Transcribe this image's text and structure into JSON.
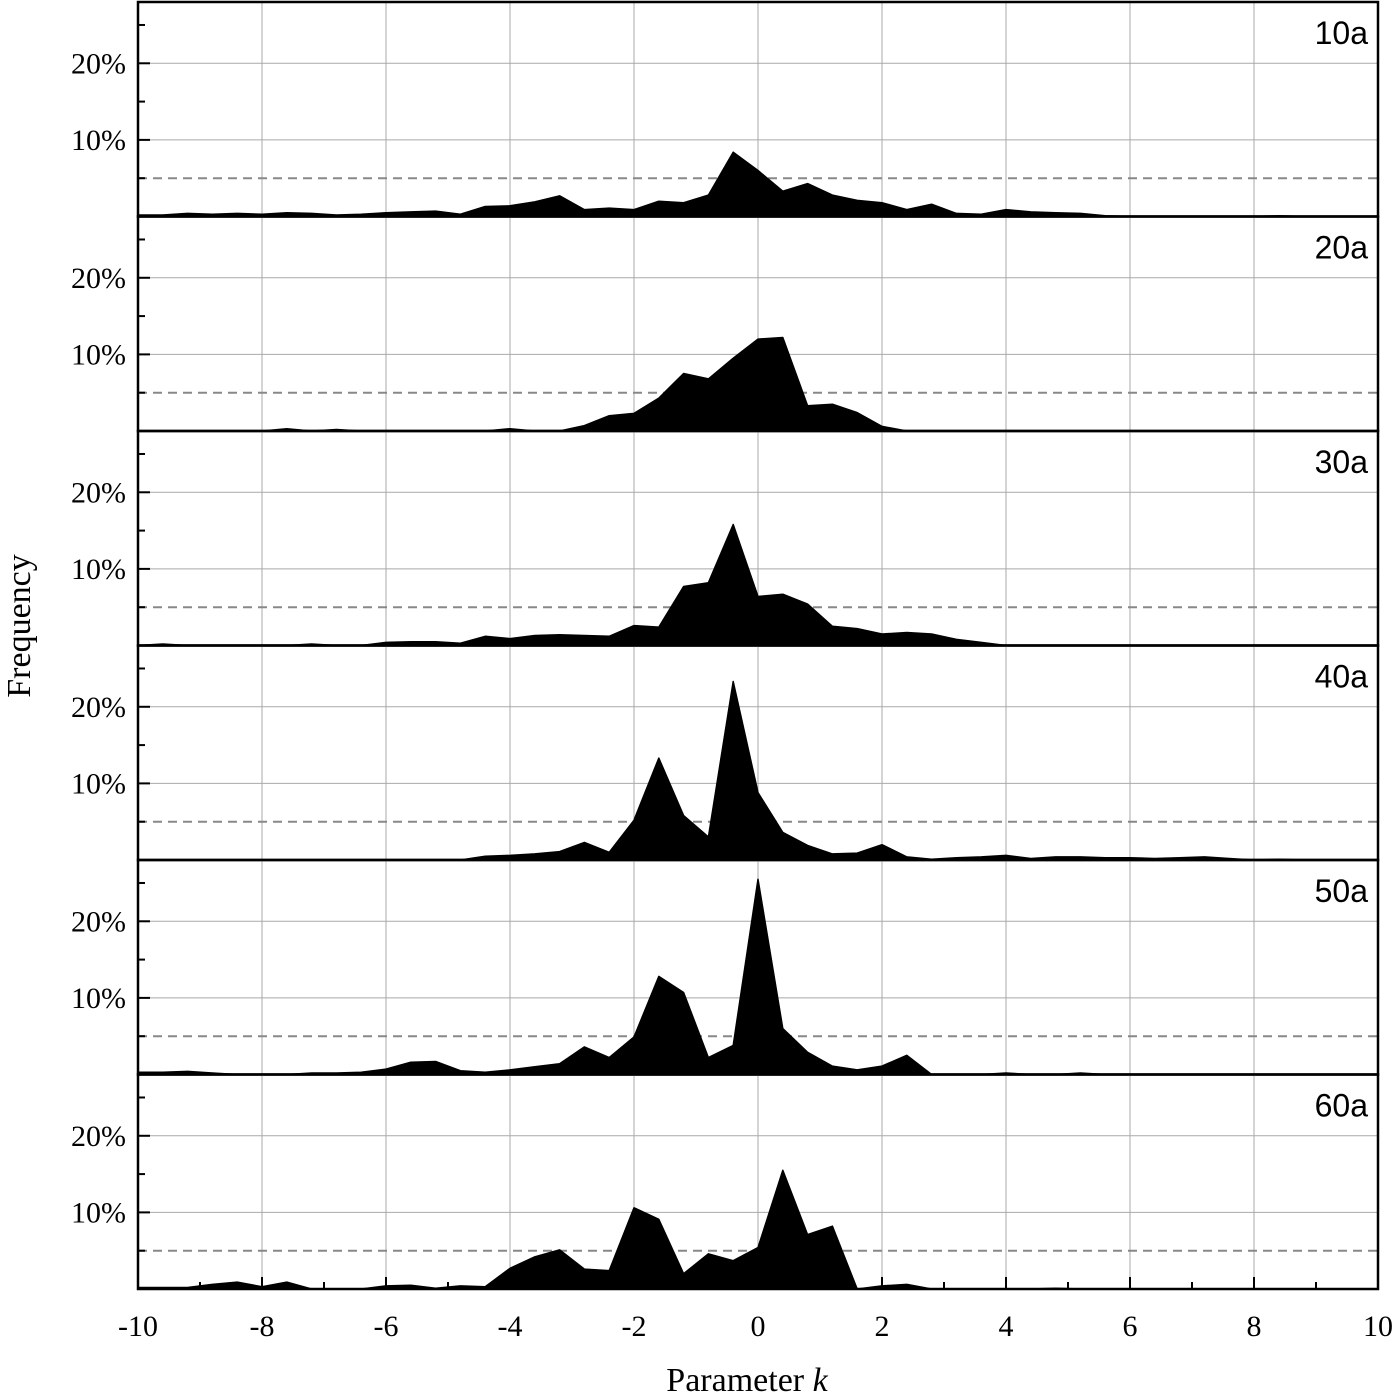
{
  "chart_data": {
    "type": "area",
    "xlabel": "Parameter",
    "xlabel_var": "k",
    "ylabel": "Frequency",
    "xlim": [
      -10,
      10
    ],
    "ylim": [
      0,
      28
    ],
    "x_ticks": [
      -10,
      -8,
      -6,
      -4,
      -2,
      0,
      2,
      4,
      6,
      8,
      10
    ],
    "y_ticks": [
      10,
      20
    ],
    "y_tick_labels": [
      "10%",
      "20%"
    ],
    "grid": true,
    "fill_color": "#000000",
    "reference_line": {
      "value": 5,
      "style": "dashed",
      "color": "#888888"
    },
    "x": [
      -10,
      -9.6,
      -9.2,
      -8.8,
      -8.4,
      -8,
      -7.6,
      -7.2,
      -6.8,
      -6.4,
      -6,
      -5.6,
      -5.2,
      -4.8,
      -4.4,
      -4,
      -3.6,
      -3.2,
      -2.8,
      -2.4,
      -2,
      -1.6,
      -1.2,
      -0.8,
      -0.4,
      0,
      0.4,
      0.8,
      1.2,
      1.6,
      2,
      2.4,
      2.8,
      3.2,
      3.6,
      4,
      4.4,
      4.8,
      5.2,
      5.6,
      6,
      6.4,
      6.8,
      7.2,
      7.6,
      8,
      8.4,
      8.8,
      9.2,
      9.6,
      10
    ],
    "panels": [
      {
        "label": "10a",
        "values": [
          0.2,
          0.2,
          0.4,
          0.3,
          0.4,
          0.3,
          0.5,
          0.4,
          0.2,
          0.3,
          0.5,
          0.6,
          0.7,
          0.3,
          1.3,
          1.4,
          1.9,
          2.7,
          0.9,
          1.1,
          0.9,
          2,
          1.8,
          2.8,
          8.4,
          6,
          3.3,
          4.3,
          2.8,
          2.1,
          1.8,
          0.9,
          1.6,
          0.4,
          0.3,
          0.9,
          0.6,
          0.5,
          0.4,
          0.1,
          0,
          0,
          0,
          0,
          0,
          0,
          0.1,
          0,
          0,
          0,
          0
        ]
      },
      {
        "label": "20a",
        "values": [
          0,
          0,
          0,
          0,
          0,
          0,
          0.3,
          0,
          0.2,
          0,
          0,
          0,
          0,
          0,
          0,
          0.3,
          0,
          0,
          0.7,
          2,
          2.3,
          4.3,
          7.5,
          6.8,
          9.5,
          12,
          12.2,
          3.3,
          3.5,
          2.4,
          0.6,
          0,
          0,
          0,
          0,
          0,
          0,
          0,
          0,
          0,
          0,
          0,
          0,
          0,
          0,
          0,
          0,
          0,
          0,
          0,
          0
        ]
      },
      {
        "label": "30a",
        "values": [
          0,
          0.2,
          0,
          0,
          0,
          0,
          0,
          0.2,
          0,
          0,
          0.4,
          0.5,
          0.5,
          0.3,
          1.2,
          0.9,
          1.3,
          1.4,
          1.3,
          1.2,
          2.6,
          2.4,
          7.7,
          8.2,
          15.8,
          6.4,
          6.7,
          5.4,
          2.5,
          2.2,
          1.5,
          1.7,
          1.5,
          0.8,
          0.4,
          0,
          0,
          0,
          0,
          0,
          0,
          0,
          0,
          0,
          0,
          0,
          0,
          0,
          0,
          0,
          0
        ]
      },
      {
        "label": "40a",
        "values": [
          0,
          0,
          0,
          0,
          0,
          0,
          0,
          0,
          0,
          0,
          0,
          0,
          0,
          0,
          0.5,
          0.6,
          0.8,
          1.1,
          2.3,
          1,
          5.2,
          13.3,
          5.8,
          3,
          23.3,
          8.8,
          3.6,
          1.9,
          0.8,
          0.9,
          2,
          0.4,
          0.1,
          0.3,
          0.4,
          0.6,
          0.2,
          0.4,
          0.4,
          0.3,
          0.3,
          0.2,
          0.3,
          0.4,
          0.2,
          0,
          0.1,
          0,
          0,
          0,
          0
        ]
      },
      {
        "label": "50a",
        "values": [
          0.3,
          0.3,
          0.4,
          0.2,
          0,
          0,
          0,
          0.2,
          0.2,
          0.3,
          0.7,
          1.6,
          1.7,
          0.5,
          0.3,
          0.6,
          1,
          1.4,
          3.6,
          2.2,
          4.9,
          12.8,
          10.7,
          2.2,
          3.8,
          25.5,
          6,
          2.9,
          1.1,
          0.6,
          1.1,
          2.5,
          0,
          0,
          0,
          0.2,
          0,
          0,
          0.2,
          0,
          0,
          0,
          0,
          0,
          0,
          0,
          0,
          0,
          0,
          0,
          0
        ]
      },
      {
        "label": "60a",
        "values": [
          0.2,
          0.2,
          0.2,
          0.6,
          0.9,
          0.3,
          0.9,
          0,
          0,
          0,
          0.4,
          0.5,
          0.1,
          0.4,
          0.3,
          2.7,
          4.2,
          5.1,
          2.6,
          2.4,
          10.6,
          9.1,
          2,
          4.6,
          3.7,
          5.4,
          15.5,
          7.1,
          8.2,
          0,
          0.4,
          0.6,
          0,
          0,
          0,
          0,
          0,
          0.1,
          0,
          0,
          0,
          0,
          0,
          0,
          0,
          0,
          0,
          0,
          0,
          0,
          0
        ]
      }
    ]
  }
}
